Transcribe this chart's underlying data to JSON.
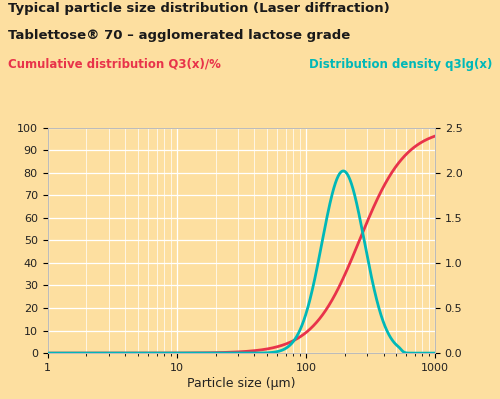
{
  "title_line1": "Typical particle size distribution (Laser diffraction)",
  "title_line2": "Tablettose® 70 – agglomerated lactose grade",
  "label_left": "Cumulative distribution Q3(x)/%",
  "label_right": "Distribution density q3lg(x)",
  "xlabel": "Particle size (µm)",
  "bg_color": "#FDDFA0",
  "plot_bg_color": "#FDDFA0",
  "grid_color": "#FFFFFF",
  "title_color": "#1a1a1a",
  "left_label_color": "#E8334A",
  "right_label_color": "#00B8B8",
  "cumulative_color": "#E8334A",
  "density_color": "#00B8B8",
  "left_ticks": [
    0,
    10,
    20,
    30,
    40,
    50,
    60,
    70,
    80,
    90,
    100
  ],
  "right_ticks": [
    0,
    0.5,
    1.0,
    1.5,
    2.0,
    2.5
  ],
  "title_fontsize": 9.5,
  "subtitle_fontsize": 9.5,
  "label_fontsize": 8.5,
  "tick_fontsize": 8,
  "xlabel_fontsize": 9
}
